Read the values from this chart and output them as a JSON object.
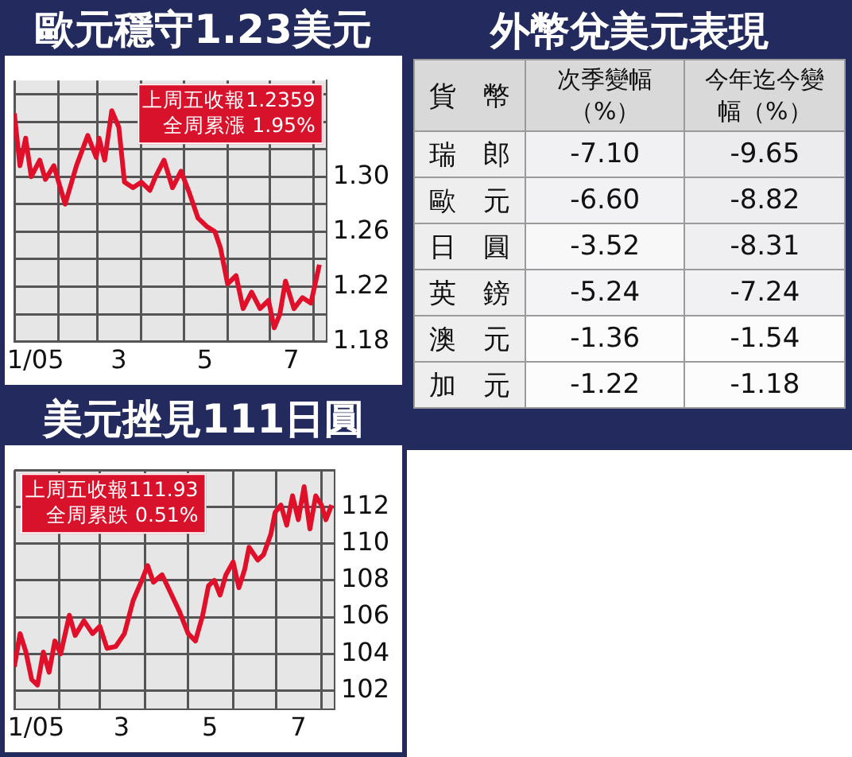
{
  "chart_data": [
    {
      "type": "line",
      "title": "歐元穩守1.23美元",
      "annotations": [
        "上周五收報1.2359",
        "全周累漲 1.95%"
      ],
      "grid": true,
      "xlim": [
        "2005-01-01",
        "2005-08-10"
      ],
      "xticks": [
        {
          "value": "2005-01-01",
          "label": null
        },
        {
          "value": "2005-01-16",
          "label": "1/05"
        },
        {
          "value": "2005-02-01",
          "label": null
        },
        {
          "value": "2005-03-01",
          "label": null
        },
        {
          "value": "2005-03-16",
          "label": "3"
        },
        {
          "value": "2005-04-01",
          "label": null
        },
        {
          "value": "2005-05-01",
          "label": null
        },
        {
          "value": "2005-05-16",
          "label": "5"
        },
        {
          "value": "2005-06-01",
          "label": null
        },
        {
          "value": "2005-07-01",
          "label": null
        },
        {
          "value": "2005-07-16",
          "label": "7"
        },
        {
          "value": "2005-08-01",
          "label": null
        }
      ],
      "ylim": [
        1.18,
        1.37
      ],
      "yticks": [
        {
          "value": 1.18,
          "label": "1.18"
        },
        {
          "value": 1.2,
          "label": null
        },
        {
          "value": 1.22,
          "label": "1.22"
        },
        {
          "value": 1.24,
          "label": null
        },
        {
          "value": 1.26,
          "label": "1.26"
        },
        {
          "value": 1.28,
          "label": null
        },
        {
          "value": 1.3,
          "label": "1.30"
        },
        {
          "value": 1.32,
          "label": null
        },
        {
          "value": 1.34,
          "label": null
        },
        {
          "value": 1.36,
          "label": null
        }
      ],
      "series": [
        {
          "color": "#e0102a",
          "x": [
            "2005-01-01",
            "2005-01-05",
            "2005-01-09",
            "2005-01-13",
            "2005-01-19",
            "2005-01-23",
            "2005-01-29",
            "2005-02-06",
            "2005-02-14",
            "2005-02-22",
            "2005-02-28",
            "2005-03-02",
            "2005-03-06",
            "2005-03-11",
            "2005-03-16",
            "2005-03-20",
            "2005-03-26",
            "2005-04-01",
            "2005-04-07",
            "2005-04-11",
            "2005-04-17",
            "2005-04-23",
            "2005-04-29",
            "2005-05-05",
            "2005-05-11",
            "2005-05-17",
            "2005-05-23",
            "2005-05-27",
            "2005-06-01",
            "2005-06-07",
            "2005-06-12",
            "2005-06-18",
            "2005-06-24",
            "2005-06-30",
            "2005-07-04",
            "2005-07-08",
            "2005-07-12",
            "2005-07-18",
            "2005-07-24",
            "2005-07-30",
            "2005-08-05"
          ],
          "values": [
            1.346,
            1.308,
            1.328,
            1.3,
            1.312,
            1.298,
            1.308,
            1.28,
            1.308,
            1.33,
            1.314,
            1.328,
            1.312,
            1.348,
            1.336,
            1.296,
            1.292,
            1.296,
            1.29,
            1.3,
            1.312,
            1.292,
            1.304,
            1.288,
            1.27,
            1.264,
            1.26,
            1.248,
            1.222,
            1.228,
            1.204,
            1.216,
            1.204,
            1.21,
            1.19,
            1.2,
            1.224,
            1.204,
            1.212,
            1.208,
            1.236
          ]
        }
      ]
    },
    {
      "type": "line",
      "title": "美元挫見111日圓",
      "annotations": [
        "上周五收報111.93",
        "全周累跌 0.51%"
      ],
      "grid": true,
      "xlim": [
        "2005-01-01",
        "2005-08-10"
      ],
      "xticks": [
        {
          "value": "2005-01-01",
          "label": null
        },
        {
          "value": "2005-01-16",
          "label": "1/05"
        },
        {
          "value": "2005-02-01",
          "label": null
        },
        {
          "value": "2005-03-01",
          "label": null
        },
        {
          "value": "2005-03-16",
          "label": "3"
        },
        {
          "value": "2005-04-01",
          "label": null
        },
        {
          "value": "2005-05-01",
          "label": null
        },
        {
          "value": "2005-05-16",
          "label": "5"
        },
        {
          "value": "2005-06-01",
          "label": null
        },
        {
          "value": "2005-07-01",
          "label": null
        },
        {
          "value": "2005-07-16",
          "label": "7"
        },
        {
          "value": "2005-08-01",
          "label": null
        }
      ],
      "ylim": [
        101,
        114
      ],
      "yticks": [
        102,
        104,
        106,
        108,
        110,
        112,
        {
          "value": 114,
          "label": null
        }
      ],
      "series": [
        {
          "color": "#e0102a",
          "x": [
            "2005-01-01",
            "2005-01-05",
            "2005-01-09",
            "2005-01-13",
            "2005-01-17",
            "2005-01-21",
            "2005-01-25",
            "2005-01-29",
            "2005-02-02",
            "2005-02-08",
            "2005-02-12",
            "2005-02-18",
            "2005-02-24",
            "2005-03-01",
            "2005-03-06",
            "2005-03-12",
            "2005-03-18",
            "2005-03-24",
            "2005-03-30",
            "2005-04-03",
            "2005-04-07",
            "2005-04-13",
            "2005-04-19",
            "2005-04-25",
            "2005-05-01",
            "2005-05-06",
            "2005-05-11",
            "2005-05-15",
            "2005-05-19",
            "2005-05-23",
            "2005-05-27",
            "2005-06-01",
            "2005-06-05",
            "2005-06-09",
            "2005-06-12",
            "2005-06-18",
            "2005-06-22",
            "2005-06-27",
            "2005-06-30",
            "2005-07-04",
            "2005-07-08",
            "2005-07-12",
            "2005-07-16",
            "2005-07-20",
            "2005-07-24",
            "2005-07-28",
            "2005-08-01",
            "2005-08-04",
            "2005-08-08"
          ],
          "values": [
            103.3,
            105.1,
            104.1,
            102.6,
            102.3,
            104.1,
            103.0,
            104.7,
            104.0,
            106.1,
            105.0,
            105.8,
            105.1,
            105.5,
            104.3,
            104.4,
            105.1,
            106.9,
            108.0,
            108.8,
            107.9,
            108.3,
            107.3,
            106.3,
            105.1,
            104.7,
            106.1,
            107.7,
            108.0,
            107.2,
            108.3,
            109.0,
            107.6,
            108.6,
            109.8,
            109.1,
            109.4,
            110.5,
            111.7,
            112.1,
            111.0,
            112.6,
            111.3,
            113.1,
            110.8,
            112.6,
            112.1,
            111.3,
            112.1
          ]
        }
      ]
    },
    {
      "type": "heatmap",
      "title": "外幣兌美元表現",
      "ylabel": "貨　幣",
      "data_labels": true,
      "categories": [
        "次季變幅（%）",
        "今年迄今變幅（%）"
      ],
      "y_categories": [
        "瑞　郎",
        "歐　元",
        "日　圓",
        "英　鎊",
        "澳　元",
        "加　元"
      ],
      "cells": [
        [
          -7.1,
          -9.65
        ],
        [
          -6.6,
          -8.82
        ],
        [
          -3.52,
          -8.31
        ],
        [
          -5.24,
          -7.24
        ],
        [
          -1.36,
          -1.54
        ],
        [
          -1.22,
          -1.18
        ]
      ],
      "cell_labels": [
        [
          "-7.10",
          "-9.65"
        ],
        [
          "-6.60",
          "-8.82"
        ],
        [
          "-3.52",
          "-8.31"
        ],
        [
          "-5.24",
          "-7.24"
        ],
        [
          "-1.36",
          "-1.54"
        ],
        [
          "-1.22",
          "-1.18"
        ]
      ]
    }
  ]
}
